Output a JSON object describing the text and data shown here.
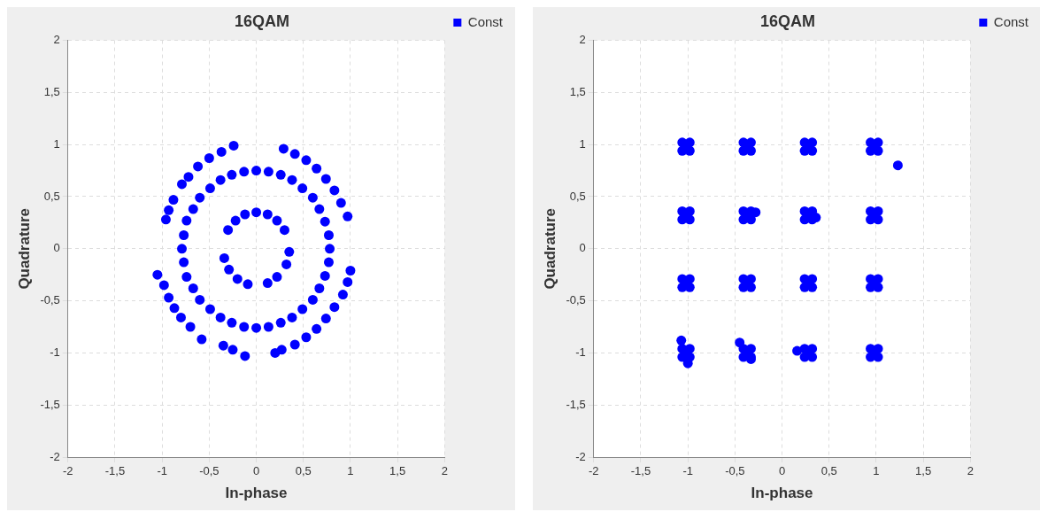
{
  "chart_data": [
    {
      "type": "scatter",
      "title": "16QAM",
      "xlabel": "In-phase",
      "ylabel": "Quadrature",
      "xlim": [
        -2,
        2
      ],
      "ylim": [
        -2,
        2
      ],
      "xticks": [
        -2,
        {
          "value": -1.5,
          "label": "-1,5"
        },
        -1,
        {
          "value": -0.5,
          "label": "-0,5"
        },
        0,
        {
          "value": 0.5,
          "label": "0,5"
        },
        1,
        {
          "value": 1.5,
          "label": "1,5"
        },
        2
      ],
      "yticks": [
        -2,
        {
          "value": -1.5,
          "label": "-1,5"
        },
        -1,
        {
          "value": -0.5,
          "label": "-0,5"
        },
        0,
        {
          "value": 0.5,
          "label": "0,5"
        },
        1,
        {
          "value": 1.5,
          "label": "1,5"
        },
        2
      ],
      "grid": true,
      "legend": "top right",
      "marker": "circle",
      "series": [
        {
          "name": "Const",
          "color": "#0000ff",
          "x": [
            -0.24,
            -0.37,
            -0.5,
            -0.62,
            -0.72,
            -0.79,
            -0.88,
            -0.93,
            -0.96,
            0.29,
            0.41,
            0.53,
            0.64,
            0.74,
            0.83,
            0.9,
            0.97,
            1.0,
            0.97,
            0.92,
            0.83,
            0.74,
            0.64,
            0.53,
            0.41,
            0.27,
            0.2,
            -0.35,
            -0.25,
            -0.12,
            -1.05,
            -0.98,
            -0.93,
            -0.87,
            -0.8,
            -0.7,
            -0.58,
            0.78,
            0.73,
            0.6,
            0.38,
            0.13,
            -0.13,
            -0.38,
            -0.6,
            -0.74,
            -0.79,
            -0.74,
            -0.6,
            -0.38,
            -0.13,
            0.13,
            0.38,
            0.6,
            0.73,
            0.77,
            0.67,
            0.49,
            0.26,
            0,
            -0.26,
            -0.49,
            -0.67,
            -0.77,
            -0.77,
            -0.67,
            -0.49,
            -0.26,
            0,
            0.26,
            0.49,
            0.67,
            0.77,
            0.3,
            0.22,
            0.12,
            0,
            -0.12,
            -0.22,
            -0.3,
            -0.34,
            -0.29,
            -0.2,
            -0.09,
            0.12,
            0.22,
            0.32,
            0.35
          ],
          "values": [
            0.99,
            0.93,
            0.87,
            0.79,
            0.69,
            0.62,
            0.47,
            0.37,
            0.28,
            0.96,
            0.91,
            0.85,
            0.77,
            0.67,
            0.56,
            0.44,
            0.31,
            -0.21,
            -0.32,
            -0.44,
            -0.56,
            -0.67,
            -0.77,
            -0.85,
            -0.92,
            -0.97,
            -1.0,
            -0.93,
            -0.97,
            -1.03,
            -0.25,
            -0.35,
            -0.47,
            -0.57,
            -0.66,
            -0.75,
            -0.87,
            0,
            0.26,
            0.49,
            0.66,
            0.74,
            0.74,
            0.66,
            0.49,
            0.27,
            0,
            -0.27,
            -0.49,
            -0.66,
            -0.75,
            -0.75,
            -0.66,
            -0.49,
            -0.26,
            0.13,
            0.38,
            0.58,
            0.71,
            0.75,
            0.71,
            0.58,
            0.38,
            0.13,
            -0.13,
            -0.38,
            -0.58,
            -0.71,
            -0.76,
            -0.71,
            -0.58,
            -0.38,
            -0.13,
            0.18,
            0.27,
            0.33,
            0.35,
            0.33,
            0.27,
            0.18,
            -0.09,
            -0.2,
            -0.29,
            -0.34,
            -0.33,
            -0.27,
            -0.15,
            -0.03
          ]
        }
      ]
    },
    {
      "type": "scatter",
      "title": "16QAM",
      "xlabel": "In-phase",
      "ylabel": "Quadrature",
      "xlim": [
        -2,
        2
      ],
      "ylim": [
        -2,
        2
      ],
      "xticks": [
        -2,
        {
          "value": -1.5,
          "label": "-1,5"
        },
        -1,
        {
          "value": -0.5,
          "label": "-0,5"
        },
        0,
        {
          "value": 0.5,
          "label": "0,5"
        },
        1,
        {
          "value": 1.5,
          "label": "1,5"
        },
        2
      ],
      "yticks": [
        -2,
        {
          "value": -1.5,
          "label": "-1,5"
        },
        -1,
        {
          "value": -0.5,
          "label": "-0,5"
        },
        0,
        {
          "value": 0.5,
          "label": "0,5"
        },
        1,
        {
          "value": 1.5,
          "label": "1,5"
        },
        2
      ],
      "grid": true,
      "legend": "top right",
      "marker": "circle",
      "series": [
        {
          "name": "Const",
          "color": "#0000ff",
          "x": [
            -1.02,
            -1.06,
            -0.98,
            -1.06,
            -0.98,
            -0.37,
            -0.41,
            -0.33,
            -0.41,
            -0.33,
            0.28,
            0.24,
            0.32,
            0.24,
            0.32,
            0.98,
            0.94,
            1.02,
            0.94,
            1.02,
            -1.02,
            -1.06,
            -0.98,
            -1.06,
            -0.98,
            -0.37,
            -0.41,
            -0.33,
            -0.41,
            -0.33,
            0.28,
            0.24,
            0.32,
            0.24,
            0.32,
            0.98,
            0.94,
            1.02,
            0.94,
            1.02,
            -1.02,
            -1.06,
            -0.98,
            -1.06,
            -0.98,
            -0.37,
            -0.41,
            -0.33,
            -0.41,
            -0.33,
            0.28,
            0.24,
            0.32,
            0.24,
            0.32,
            0.98,
            0.94,
            1.02,
            0.94,
            1.02,
            -1.02,
            -1.06,
            -0.98,
            -1.06,
            -0.98,
            -0.37,
            -0.41,
            -0.33,
            -0.41,
            -0.33,
            0.28,
            0.24,
            0.32,
            0.24,
            0.32,
            0.98,
            0.94,
            1.02,
            0.94,
            1.02,
            1.23,
            -1.07,
            -0.45,
            0.16,
            -0.28,
            0.36,
            -1.0,
            -0.33
          ],
          "values": [
            0.98,
            1.02,
            1.02,
            0.94,
            0.94,
            0.98,
            1.02,
            1.02,
            0.94,
            0.94,
            0.98,
            1.02,
            1.02,
            0.94,
            0.94,
            0.98,
            1.02,
            1.02,
            0.94,
            0.94,
            0.32,
            0.36,
            0.36,
            0.28,
            0.28,
            0.32,
            0.36,
            0.36,
            0.28,
            0.28,
            0.32,
            0.36,
            0.36,
            0.28,
            0.28,
            0.32,
            0.36,
            0.36,
            0.28,
            0.28,
            -0.33,
            -0.29,
            -0.29,
            -0.37,
            -0.37,
            -0.33,
            -0.29,
            -0.29,
            -0.37,
            -0.37,
            -0.33,
            -0.29,
            -0.29,
            -0.37,
            -0.37,
            -0.33,
            -0.29,
            -0.29,
            -0.37,
            -0.37,
            -1,
            -0.96,
            -0.96,
            -1.04,
            -1.04,
            -1,
            -0.96,
            -0.96,
            -1.04,
            -1.04,
            -1,
            -0.96,
            -0.96,
            -1.04,
            -1.04,
            -1,
            -0.96,
            -0.96,
            -1.04,
            -1.04,
            0.8,
            -0.88,
            -0.9,
            -0.98,
            0.35,
            0.3,
            -1.1,
            -1.06
          ]
        }
      ]
    }
  ]
}
